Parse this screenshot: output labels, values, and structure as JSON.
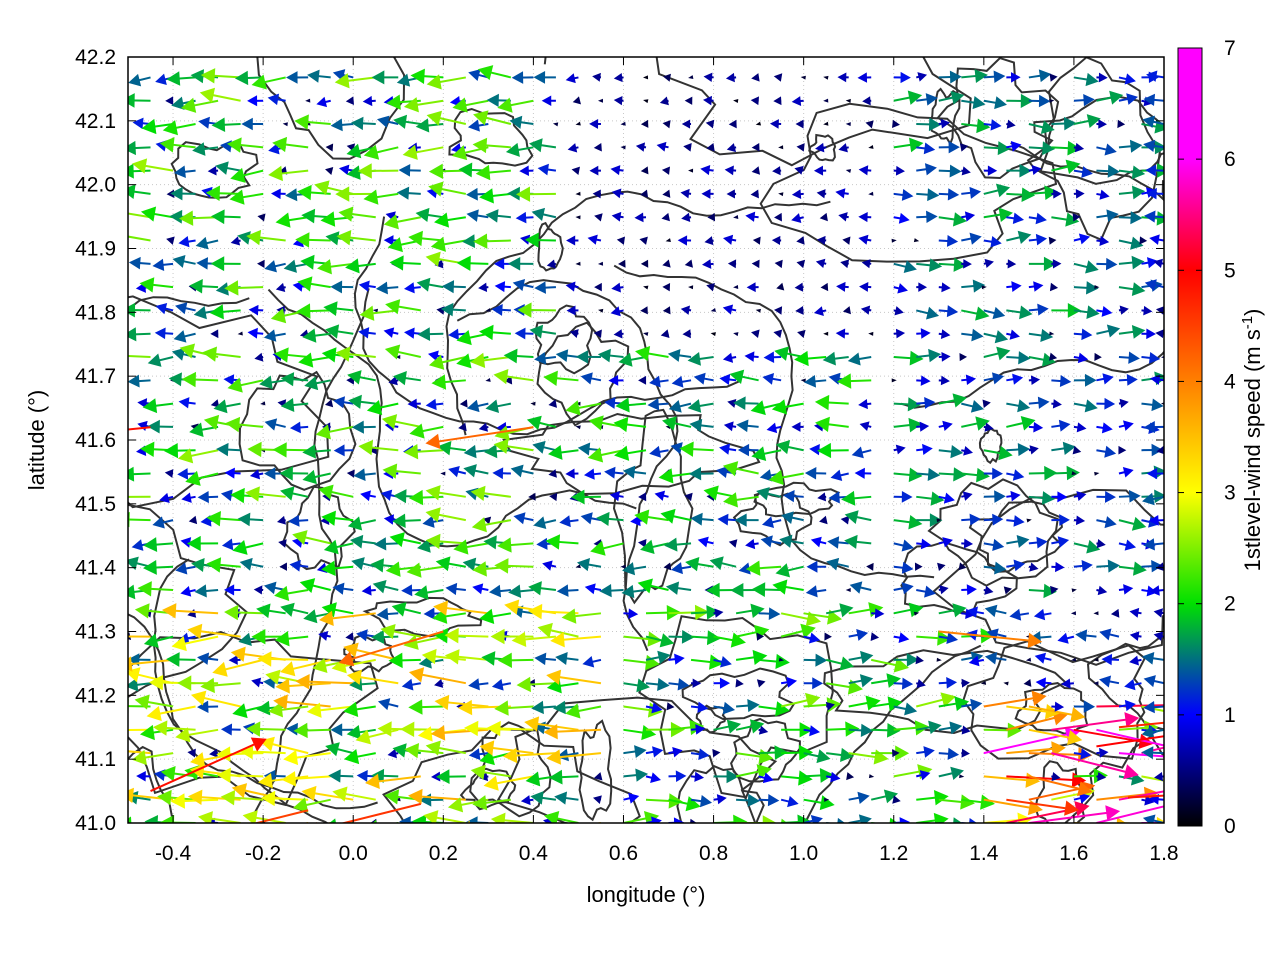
{
  "chart_data": {
    "type": "vector-field",
    "title": "",
    "xlabel": "longitude (°)",
    "ylabel": "latitude (°)",
    "xlim": [
      -0.5,
      1.8
    ],
    "ylim": [
      41.0,
      42.2
    ],
    "xticks": [
      "-0.4",
      "-0.2",
      "0.0",
      "0.2",
      "0.4",
      "0.6",
      "0.8",
      "1.0",
      "1.2",
      "1.4",
      "1.6",
      "1.8"
    ],
    "xtick_values": [
      -0.4,
      -0.2,
      0.0,
      0.2,
      0.4,
      0.6,
      0.8,
      1.0,
      1.2,
      1.4,
      1.6,
      1.8
    ],
    "yticks": [
      "41.0",
      "41.1",
      "41.2",
      "41.3",
      "41.4",
      "41.5",
      "41.6",
      "41.7",
      "41.8",
      "41.9",
      "42.0",
      "42.1",
      "42.2"
    ],
    "ytick_values": [
      41.0,
      41.1,
      41.2,
      41.3,
      41.4,
      41.5,
      41.6,
      41.7,
      41.8,
      41.9,
      42.0,
      42.1,
      42.2
    ],
    "grid": true,
    "colorbar": {
      "label": "1stlevel-wind speed (m s",
      "label_superscript": "-1",
      "label_suffix": ")",
      "range": [
        0,
        7
      ],
      "ticks": [
        "0",
        "1",
        "2",
        "3",
        "4",
        "5",
        "6",
        "7"
      ],
      "tick_values": [
        0,
        1,
        2,
        3,
        4,
        5,
        6,
        7
      ],
      "colors": [
        "#000000",
        "#0000ff",
        "#00e000",
        "#ffff00",
        "#ff8000",
        "#ff0000",
        "#ff00ff"
      ]
    },
    "contour_color": "#333333",
    "wind_regions": [
      {
        "lon": [
          -0.5,
          0.45
        ],
        "lat": [
          41.35,
          42.2
        ],
        "direction": "westward",
        "speed_ms": 1.8
      },
      {
        "lon": [
          0.45,
          1.3
        ],
        "lat": [
          41.75,
          42.2
        ],
        "direction": "westward",
        "speed_ms": 0.6
      },
      {
        "lon": [
          0.45,
          1.2
        ],
        "lat": [
          41.35,
          41.75
        ],
        "direction": "westward",
        "speed_ms": 1.6
      },
      {
        "lon": [
          1.2,
          1.8
        ],
        "lat": [
          41.35,
          42.2
        ],
        "direction": "eastward",
        "speed_ms": 1.3
      },
      {
        "lon": [
          -0.5,
          0.6
        ],
        "lat": [
          41.0,
          41.35
        ],
        "direction": "westward",
        "speed_ms": 2.5
      },
      {
        "lon": [
          0.6,
          1.4
        ],
        "lat": [
          41.0,
          41.35
        ],
        "direction": "eastward",
        "speed_ms": 1.8
      },
      {
        "lon": [
          1.4,
          1.8
        ],
        "lat": [
          41.0,
          41.2
        ],
        "direction": "eastward",
        "speed_ms": 4.6
      }
    ],
    "strong_wind_vectors": [
      {
        "lon": 1.65,
        "lat": 41.12,
        "u": 1.0,
        "v": 0.15,
        "speed_ms": 5.0
      },
      {
        "lon": 1.72,
        "lat": 41.04,
        "u": 1.0,
        "v": 0.05,
        "speed_ms": 4.8
      },
      {
        "lon": 1.7,
        "lat": 41.15,
        "u": 1.0,
        "v": 0.1,
        "speed_ms": 4.7
      },
      {
        "lon": -0.45,
        "lat": 41.05,
        "u": 1.0,
        "v": 0.45,
        "speed_ms": 4.9
      },
      {
        "lon": 0.15,
        "lat": 41.03,
        "u": -1.0,
        "v": -0.25,
        "speed_ms": 4.6
      },
      {
        "lon": -0.1,
        "lat": 41.02,
        "u": -1.0,
        "v": -0.25,
        "speed_ms": 4.5
      },
      {
        "lon": 0.4,
        "lat": 41.62,
        "u": -1.0,
        "v": -0.15,
        "speed_ms": 4.2
      },
      {
        "lon": -0.45,
        "lat": 41.62,
        "u": -1.0,
        "v": -0.1,
        "speed_ms": 4.9
      },
      {
        "lon": 0.2,
        "lat": 41.3,
        "u": -1.0,
        "v": -0.3,
        "speed_ms": 4.2
      },
      {
        "lon": 1.3,
        "lat": 41.3,
        "u": 1.0,
        "v": -0.1,
        "speed_ms": 4.0
      }
    ]
  }
}
